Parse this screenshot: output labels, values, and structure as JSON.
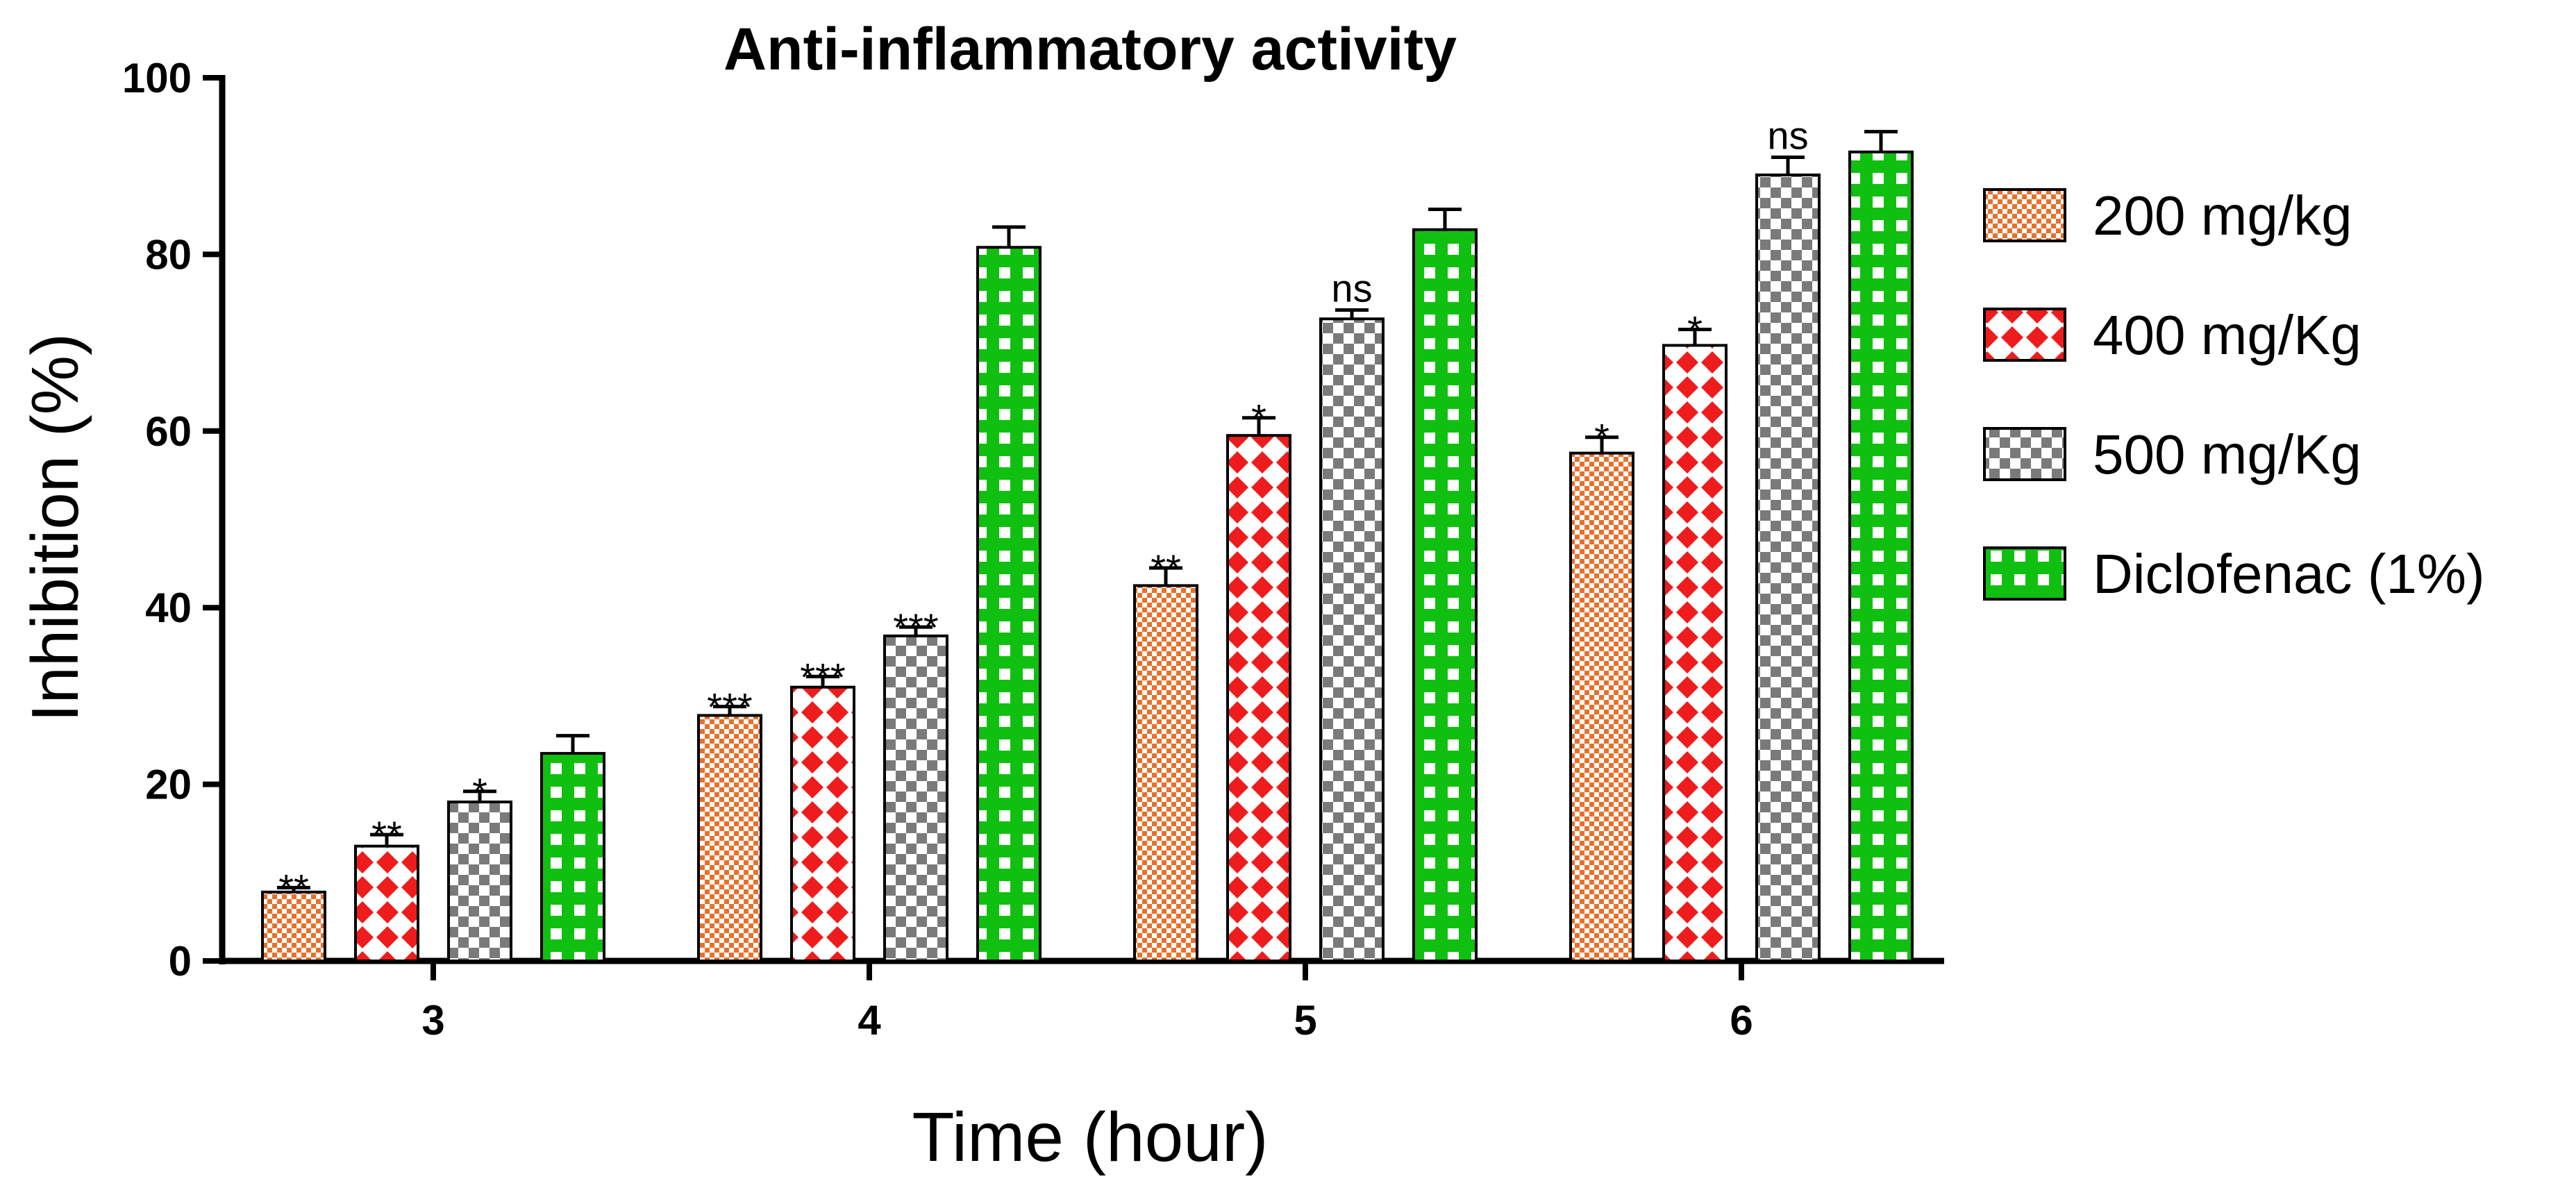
{
  "chart_data": {
    "type": "bar",
    "title": "Anti-inflammatory activity",
    "xlabel": "Time (hour)",
    "ylabel": "Inhibition (%)",
    "ylim": [
      0,
      100
    ],
    "yticks": [
      0,
      20,
      40,
      60,
      80,
      100
    ],
    "categories": [
      "3",
      "4",
      "5",
      "6"
    ],
    "legend_position": "right",
    "series": [
      {
        "name": "200 mg/Kg",
        "legend_label": "200 mg/kg",
        "pattern": "fine-checker",
        "color": "#e8702a",
        "values": [
          7.8,
          27.8,
          42.5,
          57.5
        ],
        "errors": [
          0.5,
          1.0,
          2.0,
          1.8
        ],
        "significance": [
          "**",
          "***",
          "**",
          "*"
        ]
      },
      {
        "name": "400 mg/Kg",
        "legend_label": "400 mg/Kg",
        "pattern": "diamond",
        "color": "#ee1c1c",
        "values": [
          13.0,
          31.0,
          59.5,
          69.7
        ],
        "errors": [
          1.3,
          1.2,
          2.0,
          1.8
        ],
        "significance": [
          "**",
          "***",
          "*",
          "*"
        ]
      },
      {
        "name": "500 mg/Kg",
        "legend_label": "500 mg/Kg",
        "pattern": "checker",
        "color": "#7a7a7a",
        "values": [
          18.0,
          36.8,
          72.7,
          89.0
        ],
        "errors": [
          1.2,
          1.0,
          1.0,
          2.0
        ],
        "significance": [
          "*",
          "***",
          "ns",
          "ns"
        ]
      },
      {
        "name": "Diclofenac (1%)",
        "legend_label": "Diclofenac (1%)",
        "pattern": "grid",
        "color": "#10c010",
        "values": [
          23.5,
          80.8,
          82.8,
          91.6
        ],
        "errors": [
          2.0,
          2.3,
          2.3,
          2.3
        ],
        "significance": [
          "",
          "",
          "",
          ""
        ]
      }
    ]
  }
}
